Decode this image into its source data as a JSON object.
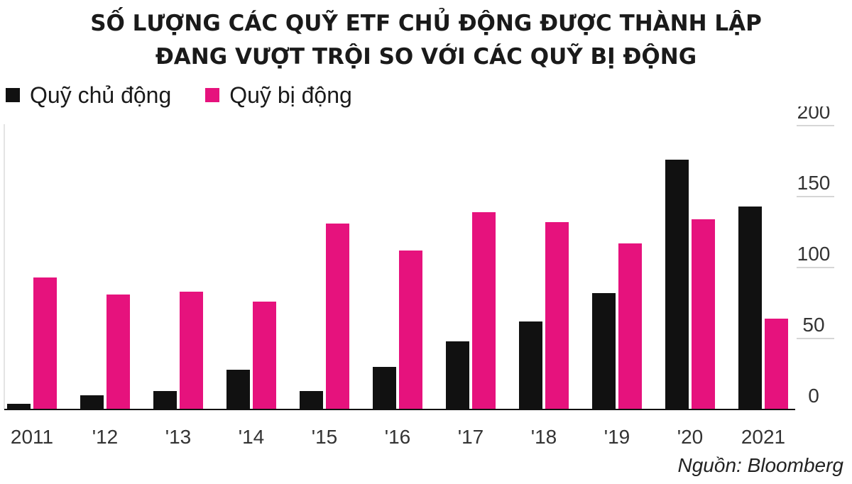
{
  "title_lines": [
    "SỐ LƯỢNG CÁC QUỸ ETF CHỦ ĐỘNG ĐƯỢC THÀNH LẬP",
    "ĐANG VƯỢT TRỘI SO VỚI CÁC QUỸ BỊ ĐỘNG"
  ],
  "source": "Nguồn: Bloomberg",
  "colors": {
    "active": "#111111",
    "passive": "#e6127d",
    "grid": "#c8c8c8",
    "text": "#1a1a1a"
  },
  "chart_data": {
    "type": "bar",
    "categories": [
      "2011",
      "'12",
      "'13",
      "'14",
      "'15",
      "'16",
      "'17",
      "'18",
      "'19",
      "'20",
      "2021"
    ],
    "series": [
      {
        "name": "Quỹ chủ động",
        "values": [
          4,
          10,
          13,
          28,
          13,
          30,
          48,
          62,
          82,
          176,
          143
        ]
      },
      {
        "name": "Quỹ bị động",
        "values": [
          93,
          81,
          83,
          76,
          131,
          112,
          139,
          132,
          117,
          134,
          64
        ]
      }
    ],
    "y_ticks": [
      0,
      50,
      100,
      150,
      200
    ],
    "ylim": [
      0,
      200
    ],
    "y_axis_position": "right",
    "legend_position": "top-left",
    "grid": "horizontal"
  }
}
